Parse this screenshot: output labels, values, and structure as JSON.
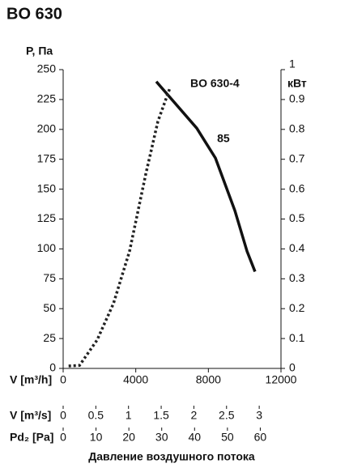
{
  "chart_data": {
    "type": "line",
    "title": "BO 630",
    "ylabel": "P, Па",
    "y2label": "кВт",
    "xlabel": "V [m³/h]",
    "x2label": "V [m³/s]",
    "x3label": "Pd₂ [Pa]",
    "caption": "Давление воздушного потока",
    "xlim": [
      0,
      12000
    ],
    "xticks": [
      0,
      4000,
      8000,
      12000
    ],
    "ylim": [
      0,
      250
    ],
    "yticks": [
      0,
      25,
      50,
      75,
      100,
      125,
      150,
      175,
      200,
      225,
      250
    ],
    "y2lim": [
      0,
      1
    ],
    "y2ticks": [
      0,
      0.1,
      0.2,
      0.3,
      0.4,
      0.5,
      0.6,
      0.7,
      0.8,
      0.9,
      1
    ],
    "x2lim": [
      0,
      3.333
    ],
    "x2ticks": [
      0,
      0.5,
      1,
      1.5,
      2,
      2.5,
      3
    ],
    "x3lim": [
      0,
      66.3
    ],
    "x3ticks": [
      0,
      10,
      20,
      30,
      40,
      50,
      60
    ],
    "series": [
      {
        "name": "BO 630-4",
        "color": "#111111",
        "dash": "solid",
        "x": [
          5130,
          7360,
          8390,
          9460,
          10130,
          10570
        ],
        "values": [
          240,
          201,
          176,
          132,
          98,
          81
        ]
      },
      {
        "color": "#222222",
        "dash": "dotted",
        "axis": "y2",
        "x": [
          300,
          900,
          1870,
          2770,
          3660,
          4550,
          5220,
          5890
        ],
        "values": [
          0.008,
          0.01,
          0.095,
          0.217,
          0.393,
          0.65,
          0.827,
          0.94
        ]
      }
    ],
    "annotations": [
      {
        "text": "85",
        "x": 8390,
        "y": 190
      }
    ]
  }
}
